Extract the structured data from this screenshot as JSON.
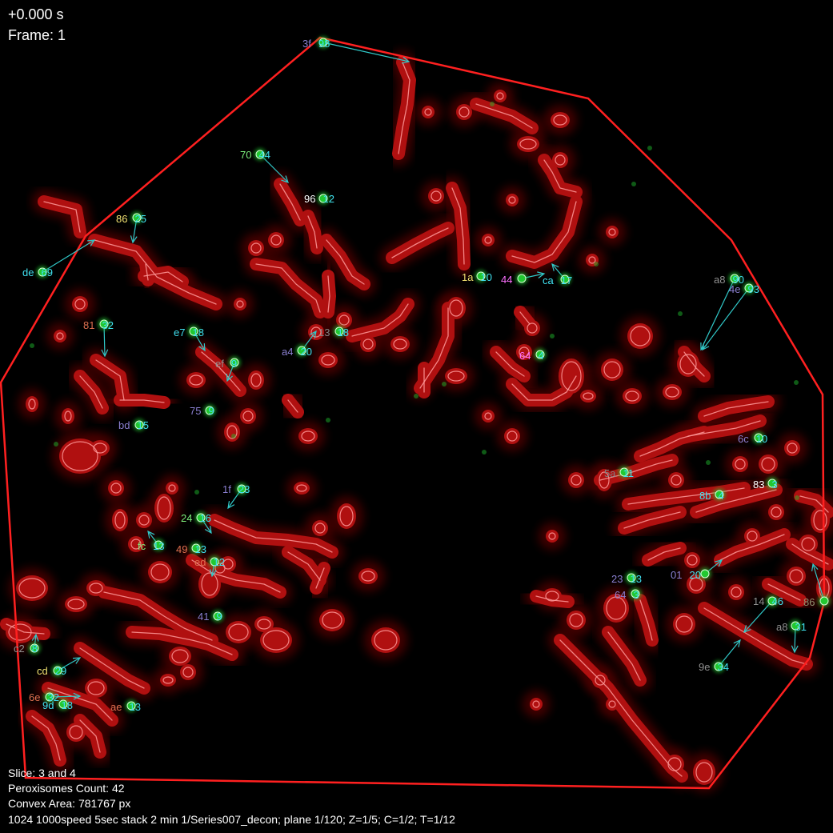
{
  "overlay": {
    "time": "+0.000 s",
    "frame": "Frame: 1",
    "slice": "Slice: 3 and 4",
    "count": "Peroxisomes Count: 42",
    "area": "Convex Area: 781767 px",
    "series": "1024 1000speed 5sec stack 2 min 1/Series007_decon; plane 1/120; Z=1/5; C=1/2; T=1/12"
  },
  "colors": {
    "background": "#000000",
    "hull": "#ff2020",
    "mito_fill": "#b01010",
    "mito_halo": "#4a0606",
    "mito_outline": "#ff9a9a",
    "peroxisome": "#22c830",
    "track_arrow": "#30c8c8",
    "id_cyan": "#40e0f0",
    "text": "#ffffff"
  },
  "tracks": [
    {
      "id": "3f",
      "n": "98",
      "id_color": "#8a7fd0"
    },
    {
      "id": "70",
      "n": "44",
      "id_color": "#7cf07c"
    },
    {
      "id": "96",
      "n": "12",
      "id_color": "#ffffff"
    },
    {
      "id": "86",
      "n": "25",
      "id_color": "#f0e070"
    },
    {
      "id": "de",
      "n": "69",
      "id_color": "#40e0f0"
    },
    {
      "id": "81",
      "n": "32",
      "id_color": "#e07050"
    },
    {
      "id": "e7",
      "n": "18",
      "id_color": "#40e0f0"
    },
    {
      "id": "ef",
      "n": "9",
      "id_color": "#909090"
    },
    {
      "id": "a4",
      "n": "20",
      "id_color": "#8a7fd0"
    },
    {
      "id": "13",
      "n": "18",
      "id_color": "#808080"
    },
    {
      "id": "bd",
      "n": "15",
      "id_color": "#8a7fd0"
    },
    {
      "id": "75",
      "n": "9",
      "id_color": "#8a7fd0"
    },
    {
      "id": "1f",
      "n": "23",
      "id_color": "#8a7fd0"
    },
    {
      "id": "24",
      "n": "16",
      "id_color": "#7cf07c"
    },
    {
      "id": "fc",
      "n": "13",
      "id_color": "#7cf07c"
    },
    {
      "id": "49",
      "n": "13",
      "id_color": "#e07050"
    },
    {
      "id": "ed",
      "n": "12",
      "id_color": "#e07050"
    },
    {
      "id": "41",
      "n": "9",
      "id_color": "#8a7fd0"
    },
    {
      "id": "c2",
      "n": "8",
      "id_color": "#909090"
    },
    {
      "id": "cd",
      "n": "29",
      "id_color": "#f0e070"
    },
    {
      "id": "6e",
      "n": "32",
      "id_color": "#e07050"
    },
    {
      "id": "9d",
      "n": "18",
      "id_color": "#40e0f0"
    },
    {
      "id": "ae",
      "n": "13",
      "id_color": "#e07050"
    },
    {
      "id": "1a",
      "n": "10",
      "id_color": "#f0e070"
    },
    {
      "id": "44",
      "n": "",
      "id_color": "#ff70ff"
    },
    {
      "id": "ca",
      "n": "17",
      "id_color": "#40e0f0"
    },
    {
      "id": "64",
      "n": "4",
      "id_color": "#ff70ff"
    },
    {
      "id": "a8",
      "n": "90",
      "id_color": "#909090"
    },
    {
      "id": "4e",
      "n": "93",
      "id_color": "#8a7fd0"
    },
    {
      "id": "6c",
      "n": "10",
      "id_color": "#8a7fd0"
    },
    {
      "id": "5a",
      "n": "11",
      "id_color": "#808080"
    },
    {
      "id": "83",
      "n": "3",
      "id_color": "#ffffff"
    },
    {
      "id": "8b",
      "n": "4",
      "id_color": "#40e0f0"
    },
    {
      "id": "23",
      "n": "13",
      "id_color": "#8a7fd0"
    },
    {
      "id": "64",
      "n": "3",
      "id_color": "#8a7fd0"
    },
    {
      "id": "01",
      "n": "20",
      "id_color": "#8a7fd0"
    },
    {
      "id": "14",
      "n": "46",
      "id_color": "#909090"
    },
    {
      "id": "86",
      "n": "",
      "id_color": "#909070"
    },
    {
      "id": "a8",
      "n": "31",
      "id_color": "#909090"
    },
    {
      "id": "9e",
      "n": "34",
      "id_color": "#909090"
    }
  ]
}
